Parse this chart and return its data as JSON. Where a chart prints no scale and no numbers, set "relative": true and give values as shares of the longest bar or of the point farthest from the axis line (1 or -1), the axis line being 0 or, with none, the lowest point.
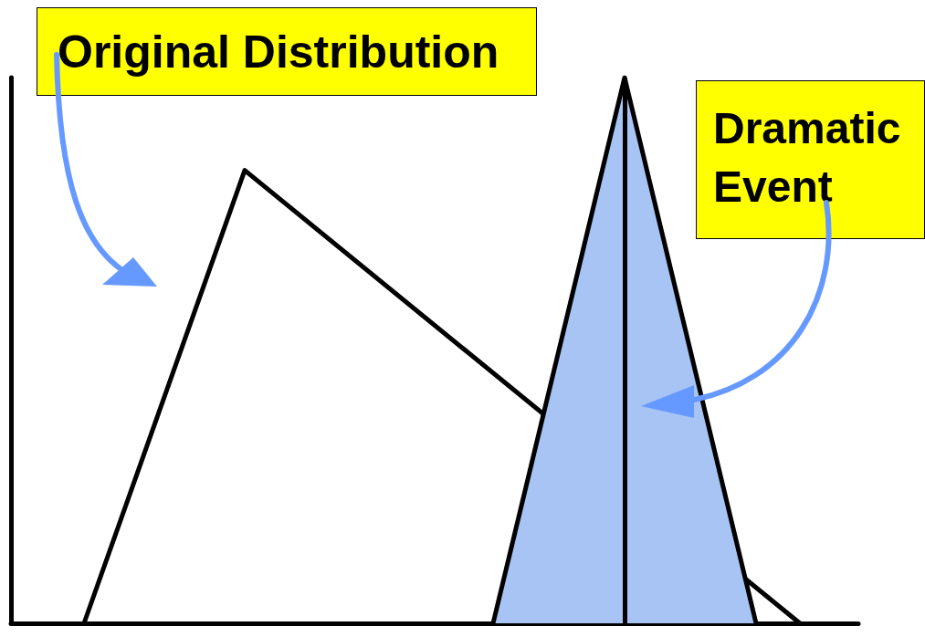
{
  "chart_data": {
    "type": "line",
    "relative": true,
    "grid": false,
    "marker": "none",
    "categories": [
      null,
      null,
      null,
      null,
      null,
      null,
      null,
      null,
      null,
      null,
      null,
      null,
      null,
      null,
      null,
      null,
      null,
      null,
      null,
      null,
      null,
      null,
      null,
      null,
      null,
      null,
      null,
      null,
      null,
      null,
      null,
      null,
      null,
      null,
      null,
      null,
      null,
      null,
      null,
      null,
      null,
      null,
      null,
      null,
      null,
      null,
      null,
      null,
      null,
      null,
      null,
      null,
      null,
      null,
      null,
      null,
      null,
      null,
      null
    ],
    "series": [
      {
        "color": "#000000",
        "values": [
          null,
          null,
          null,
          null,
          null,
          0,
          null,
          null,
          null,
          null,
          null,
          null,
          null,
          null,
          null,
          null,
          0.83,
          null,
          null,
          null,
          null,
          null,
          null,
          null,
          null,
          null,
          null,
          null,
          null,
          null,
          null,
          null,
          null,
          null,
          null,
          null,
          null,
          null,
          null,
          null,
          null,
          null,
          null,
          null,
          null,
          null,
          null,
          null,
          null,
          null,
          null,
          null,
          null,
          null,
          0,
          null,
          null,
          null,
          null
        ]
      },
      {
        "type": "area",
        "color": "#a8c4f4",
        "values": [
          null,
          null,
          null,
          null,
          null,
          null,
          null,
          null,
          null,
          null,
          null,
          null,
          null,
          null,
          null,
          null,
          null,
          null,
          null,
          null,
          null,
          null,
          null,
          null,
          null,
          null,
          null,
          null,
          null,
          null,
          null,
          null,
          null,
          0,
          null,
          null,
          null,
          null,
          null,
          null,
          null,
          null,
          1,
          null,
          null,
          null,
          null,
          null,
          null,
          null,
          null,
          0,
          null,
          null,
          null,
          null,
          null,
          null,
          null
        ]
      }
    ],
    "annotations": [
      "Original Distribution",
      "Dramatic Event"
    ]
  }
}
